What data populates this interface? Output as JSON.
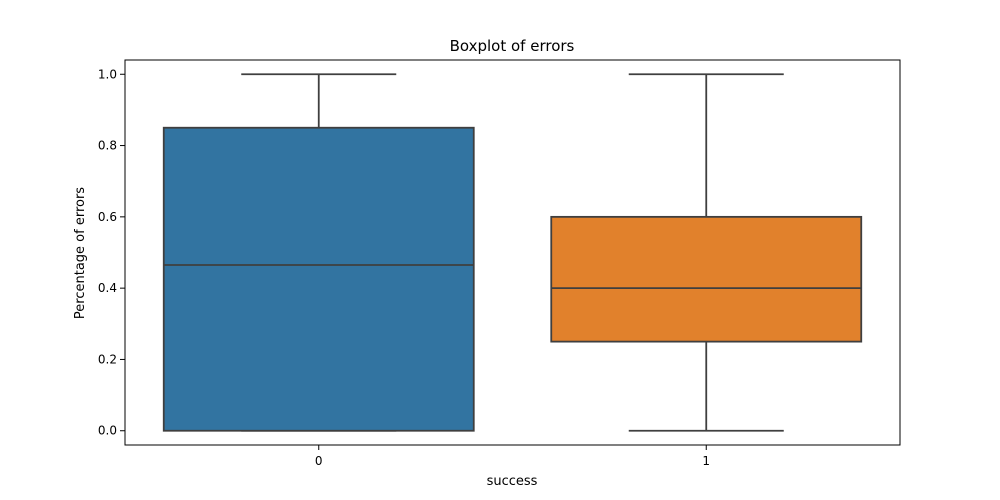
{
  "chart_data": {
    "type": "boxplot",
    "title": "Boxplot of errors",
    "xlabel": "success",
    "ylabel": "Percentage of errors",
    "categories": [
      "0",
      "1"
    ],
    "boxes": [
      {
        "category": "0",
        "whisker_low": 0.0,
        "q1": 0.0,
        "median": 0.465,
        "q3": 0.85,
        "whisker_high": 1.0,
        "color": "#3274a1"
      },
      {
        "category": "1",
        "whisker_low": 0.0,
        "q1": 0.25,
        "median": 0.4,
        "q3": 0.6,
        "whisker_high": 1.0,
        "color": "#e1812c"
      }
    ],
    "ylim": [
      -0.04,
      1.04
    ],
    "yticks": [
      0.0,
      0.2,
      0.4,
      0.6,
      0.8,
      1.0
    ],
    "ytick_labels": [
      "0.0",
      "0.2",
      "0.4",
      "0.6",
      "0.8",
      "1.0"
    ],
    "grid": false,
    "line_color": "#3f3f3f"
  }
}
